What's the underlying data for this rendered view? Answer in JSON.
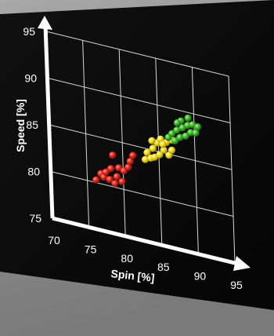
{
  "chart_data": {
    "type": "scatter",
    "title": "",
    "xlabel": "Spin [%]",
    "ylabel": "Speed [%]",
    "xlim": [
      70,
      95
    ],
    "ylim": [
      75,
      95
    ],
    "x_ticks": [
      "70",
      "75",
      "80",
      "85",
      "90",
      "95"
    ],
    "y_ticks": [
      "75",
      "80",
      "85",
      "90",
      "95"
    ],
    "grid": true,
    "legend": "none",
    "series": [
      {
        "color": "#d9231d",
        "points": [
          [
            76.2,
            80.3
          ],
          [
            76.9,
            81.1
          ],
          [
            77.3,
            80.8
          ],
          [
            77.6,
            81.4
          ],
          [
            78.1,
            80.7
          ],
          [
            78.3,
            81.9
          ],
          [
            78.6,
            83.4
          ],
          [
            79.1,
            81.2
          ],
          [
            79.4,
            82.2
          ],
          [
            79.8,
            80.8
          ],
          [
            80.1,
            82.0
          ],
          [
            80.7,
            82.5
          ],
          [
            81.0,
            83.2
          ],
          [
            81.4,
            83.9
          ],
          [
            78.8,
            80.4
          ]
        ]
      },
      {
        "color": "#f2dc1c",
        "points": [
          [
            83.1,
            83.8
          ],
          [
            83.4,
            84.6
          ],
          [
            83.9,
            84.1
          ],
          [
            84.2,
            85.2
          ],
          [
            84.4,
            84.3
          ],
          [
            84.8,
            85.9
          ],
          [
            85.1,
            84.7
          ],
          [
            85.3,
            86.4
          ],
          [
            85.7,
            85.3
          ],
          [
            86.1,
            86.2
          ],
          [
            86.4,
            84.9
          ],
          [
            86.8,
            85.5
          ],
          [
            84.1,
            86.0
          ],
          [
            85.6,
            85.9
          ],
          [
            86.9,
            86.6
          ]
        ]
      },
      {
        "color": "#3bb02c",
        "points": [
          [
            86.4,
            86.8
          ],
          [
            86.9,
            87.3
          ],
          [
            87.3,
            86.6
          ],
          [
            87.6,
            87.8
          ],
          [
            88.0,
            87.1
          ],
          [
            88.4,
            88.2
          ],
          [
            88.8,
            87.4
          ],
          [
            89.1,
            88.6
          ],
          [
            89.5,
            87.9
          ],
          [
            89.8,
            88.8
          ],
          [
            90.2,
            88.0
          ],
          [
            90.5,
            88.7
          ],
          [
            88.2,
            88.9
          ],
          [
            89.2,
            89.4
          ],
          [
            87.7,
            88.6
          ]
        ]
      }
    ]
  }
}
